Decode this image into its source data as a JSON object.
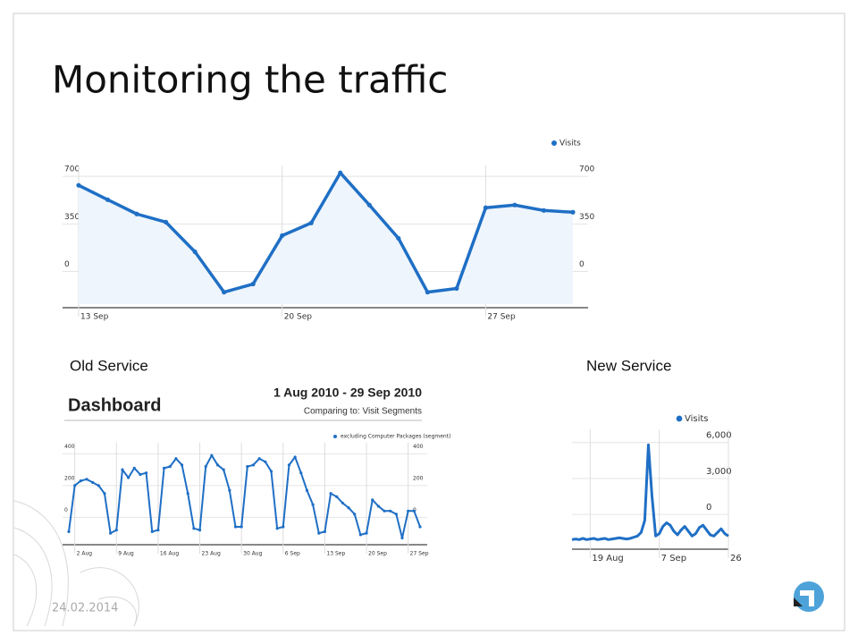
{
  "slide": {
    "title": "Monitoring the traffic",
    "date": "24.02.2014",
    "captions": [
      "Old Service",
      "New Service"
    ]
  },
  "chart_data": [
    {
      "type": "line",
      "area": true,
      "categories": [
        "13 Sep",
        null,
        null,
        null,
        null,
        null,
        null,
        "20 Sep",
        null,
        null,
        null,
        null,
        null,
        null,
        "27 Sep",
        null,
        null,
        null
      ],
      "series": [
        {
          "name": "Visits",
          "color": "#1f6fc5",
          "values": [
            634,
            528,
            423,
            363,
            145,
            -152,
            -92,
            264,
            357,
            726,
            489,
            244,
            -152,
            -125,
            469,
            489,
            449,
            436
          ]
        }
      ],
      "ylim": [
        -240,
        780
      ],
      "yticks": [
        0,
        350,
        700
      ],
      "grid": true
    },
    {
      "type": "line",
      "area": false,
      "title": "Dashboard",
      "subtitle": "1 Aug 2010 - 29 Sep 2010",
      "note": "Comparing to: Visit Segments",
      "categories": [
        null,
        "2 Aug",
        null,
        null,
        null,
        null,
        null,
        null,
        "9 Aug",
        null,
        null,
        null,
        null,
        null,
        null,
        "16 Aug",
        null,
        null,
        null,
        null,
        null,
        null,
        "23 Aug",
        null,
        null,
        null,
        null,
        null,
        null,
        "30 Aug",
        null,
        null,
        null,
        null,
        null,
        null,
        "6 Sep",
        null,
        null,
        null,
        null,
        null,
        null,
        "13 Sep",
        null,
        null,
        null,
        null,
        null,
        null,
        "20 Sep",
        null,
        null,
        null,
        null,
        null,
        null,
        "27 Sep",
        null,
        null
      ],
      "series": [
        {
          "name": "excluding Computer Packages (segment)",
          "color": "#1f6fc5",
          "values": [
            -90,
            200,
            230,
            240,
            220,
            200,
            150,
            -100,
            -80,
            300,
            250,
            310,
            270,
            280,
            -90,
            -80,
            310,
            320,
            370,
            330,
            150,
            -70,
            -80,
            320,
            390,
            330,
            300,
            170,
            -60,
            -60,
            320,
            330,
            370,
            350,
            290,
            -70,
            -60,
            330,
            380,
            280,
            170,
            80,
            -100,
            -90,
            150,
            130,
            90,
            60,
            20,
            -110,
            -100,
            110,
            70,
            40,
            40,
            20,
            -130,
            40,
            40,
            -60
          ]
        }
      ],
      "ylim": [
        -150,
        470
      ],
      "yticks": [
        0,
        200,
        400
      ],
      "grid": true
    },
    {
      "type": "line",
      "area": false,
      "categories": [
        null,
        null,
        null,
        null,
        null,
        "19 Aug",
        null,
        null,
        null,
        null,
        null,
        null,
        null,
        null,
        null,
        null,
        null,
        null,
        null,
        null,
        null,
        null,
        null,
        null,
        "7 Sep",
        null,
        null,
        null,
        null,
        null,
        null,
        null,
        null,
        null,
        null,
        null,
        null,
        null,
        null,
        null,
        null,
        null,
        null,
        "26"
      ],
      "series": [
        {
          "name": "Visits",
          "color": "#1f6fc5",
          "values": [
            -2100,
            -2050,
            -2100,
            -2000,
            -2100,
            -2050,
            -2000,
            -2100,
            -2050,
            -2000,
            -2100,
            -2050,
            -2000,
            -1950,
            -2000,
            -2050,
            -2000,
            -1900,
            -1800,
            -1500,
            -500,
            5800,
            1500,
            -1800,
            -1600,
            -1000,
            -700,
            -900,
            -1400,
            -1700,
            -1300,
            -1000,
            -1400,
            -1800,
            -1600,
            -1100,
            -900,
            -1300,
            -1700,
            -1800,
            -1500,
            -1200,
            -1600,
            -1800
          ]
        }
      ],
      "ylim": [
        -2600,
        7100
      ],
      "yticks": [
        0,
        {
          "value": 3000,
          "label": "3,000"
        },
        {
          "value": 6000,
          "label": "6,000"
        }
      ],
      "grid": true
    }
  ]
}
